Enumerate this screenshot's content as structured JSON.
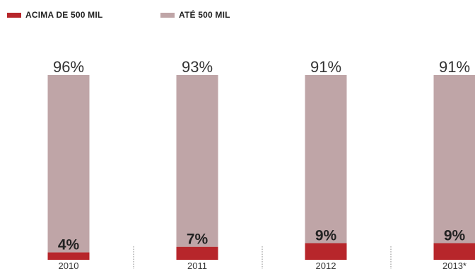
{
  "legend": {
    "items": [
      {
        "label": "ACIMA DE  500 MIL",
        "color": "#b7262b"
      },
      {
        "label": "ATÉ 500 MIL",
        "color": "#bfa5a7"
      }
    ]
  },
  "chart_data": {
    "type": "bar",
    "stacked": true,
    "categories": [
      "2010",
      "2011",
      "2012",
      "2013*"
    ],
    "series": [
      {
        "name": "ACIMA DE  500 MIL",
        "values": [
          4,
          7,
          9,
          9
        ],
        "labels": [
          "4%",
          "7%",
          "9%",
          "9%"
        ],
        "color": "#b7262b"
      },
      {
        "name": "ATÉ 500 MIL",
        "values": [
          96,
          93,
          91,
          91
        ],
        "labels": [
          "96%",
          "93%",
          "91%",
          "91%"
        ],
        "color": "#bfa5a7"
      }
    ],
    "ylim": [
      0,
      100
    ],
    "grid": false,
    "legend_position": "top-left"
  }
}
